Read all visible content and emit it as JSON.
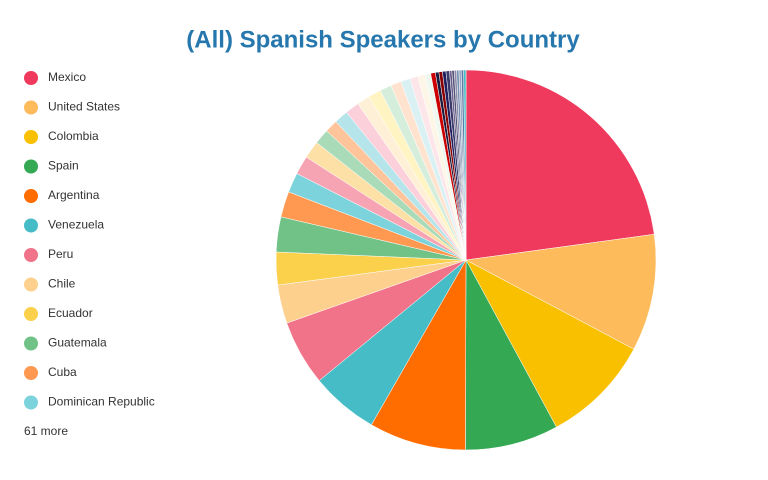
{
  "chart_data": {
    "type": "pie",
    "title": "(All) Spanish Speakers by Country",
    "categories": [
      "Mexico",
      "United States",
      "Colombia",
      "Spain",
      "Argentina",
      "Venezuela",
      "Peru",
      "Chile",
      "Ecuador",
      "Guatemala",
      "Cuba",
      "Dominican Republic",
      null,
      null,
      null,
      null,
      null,
      null,
      null,
      null,
      null,
      null,
      null,
      null,
      null,
      null,
      null,
      null,
      null,
      null,
      null,
      null,
      null,
      null,
      null,
      null,
      null,
      null
    ],
    "values": [
      23,
      10,
      9.4,
      8,
      8.3,
      5.8,
      5.6,
      3.3,
      2.8,
      3,
      2.2,
      1.7,
      1.6,
      1.5,
      1.3,
      1.1,
      1.2,
      1.2,
      1.1,
      1.1,
      1,
      0.9,
      0.8,
      0.7,
      0.6,
      0.5,
      0.4,
      0.3,
      0.3,
      0.3,
      0.3,
      0.2,
      0.2,
      0.2,
      0.2,
      0.2,
      0.2,
      0.2
    ],
    "colors": [
      "#ef3a5d",
      "#fdbb5b",
      "#f9c000",
      "#34a853",
      "#ff6d00",
      "#46bdc6",
      "#f0738a",
      "#fdd08e",
      "#fbd04a",
      "#71c286",
      "#ff9850",
      "#7dd3db",
      "#f6a3b3",
      "#fde0a6",
      "#aadbb8",
      "#ffc49a",
      "#b5e5ea",
      "#fbd0da",
      "#fef0d6",
      "#fff4c2",
      "#d5eedb",
      "#ffe3cf",
      "#daf1f4",
      "#fce6ea",
      "#fdf6e6",
      "#eef8ef",
      "#cc0000",
      "#1a1a40",
      "#8b0000",
      "#202060",
      "#3b3b6b",
      "#6a5d8c",
      "#555577",
      "#8b8bab",
      "#7790b0",
      "#9aa7c4",
      "#5a7ba6",
      "#46bdc6"
    ],
    "legend_more": "61 more"
  }
}
